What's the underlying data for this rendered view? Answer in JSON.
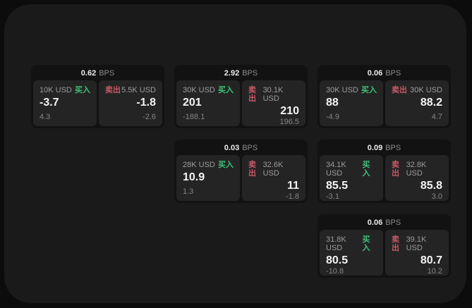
{
  "labels": {
    "buy": "买入",
    "sell": "卖出",
    "bps_unit": "BPS"
  },
  "colors": {
    "background": "#0c0c0c",
    "surface": "#1a1a1a",
    "card": "#121212",
    "panel": "#242424",
    "buy_green": "#3ec27a",
    "sell_red": "#c65a67"
  },
  "cards": [
    {
      "bps": "0.62",
      "buy_amount": "10K USD",
      "buy_price": "-3.7",
      "buy_sub": "4.3",
      "sell_amount": "5.5K USD",
      "sell_price": "-1.8",
      "sell_sub": "-2.6"
    },
    {
      "bps": "2.92",
      "buy_amount": "30K USD",
      "buy_price": "201",
      "buy_sub": "-188.1",
      "sell_amount": "30.1K USD",
      "sell_price": "210",
      "sell_sub": "196.5"
    },
    {
      "bps": "0.06",
      "buy_amount": "30K USD",
      "buy_price": "88",
      "buy_sub": "-4.9",
      "sell_amount": "30K USD",
      "sell_price": "88.2",
      "sell_sub": "4.7"
    },
    {
      "bps": "0.03",
      "buy_amount": "28K USD",
      "buy_price": "10.9",
      "buy_sub": "1.3",
      "sell_amount": "32.6K USD",
      "sell_price": "11",
      "sell_sub": "-1.8"
    },
    {
      "bps": "0.09",
      "buy_amount": "34.1K USD",
      "buy_price": "85.5",
      "buy_sub": "-3.1",
      "sell_amount": "32.8K USD",
      "sell_price": "85.8",
      "sell_sub": "3.0"
    },
    {
      "bps": "0.06",
      "buy_amount": "31.8K USD",
      "buy_price": "80.5",
      "buy_sub": "-10.8",
      "sell_amount": "39.1K USD",
      "sell_price": "80.7",
      "sell_sub": "10.2"
    }
  ]
}
